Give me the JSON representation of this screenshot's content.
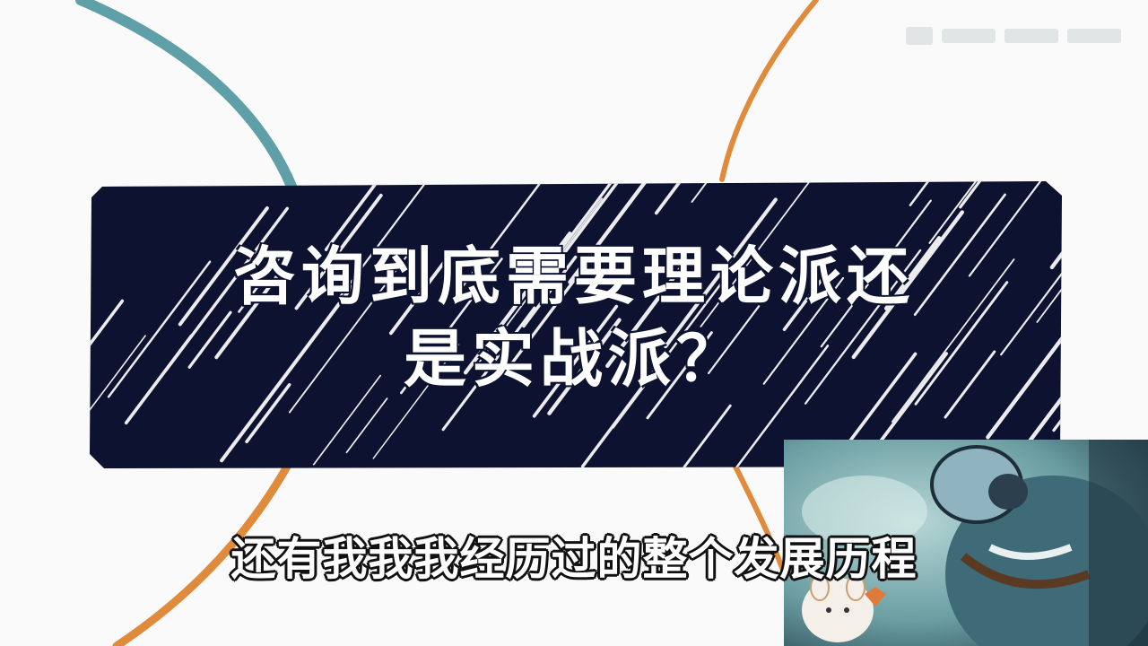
{
  "title_card": {
    "line1": "咨询到底需要理论派还",
    "line2": "是实战派？"
  },
  "subtitle": "还有我我我经历过的整个发展历程",
  "colors": {
    "background": "#fafafa",
    "card": "#0d1230",
    "stripe": "#ffffff",
    "teal_arc": "#5fa0a8",
    "orange_arc": "#e08a3c",
    "pip_bg": "#6fa7ab"
  },
  "pip": {
    "description_icon": "cartoon-character-icon"
  }
}
